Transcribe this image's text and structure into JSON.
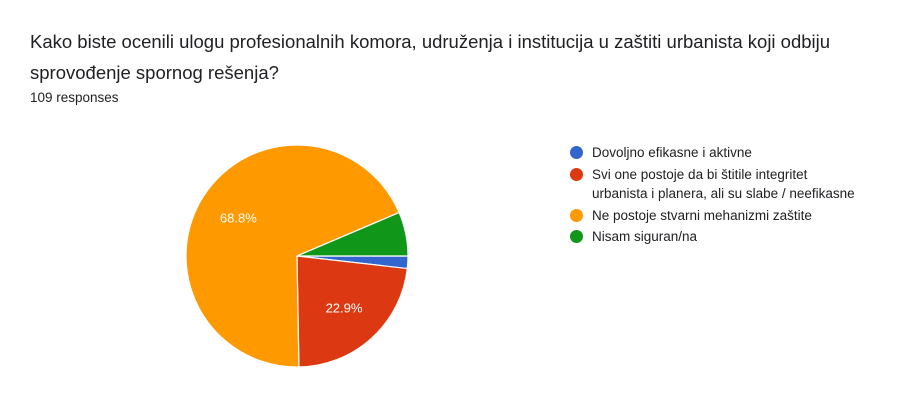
{
  "question": "Kako biste ocenili ulogu profesionalnih komora, udruženja i institucija u zaštiti urbanista koji odbiju sprovođenje spornog rešenja?",
  "responses_label": "109 responses",
  "chart_data": {
    "type": "pie",
    "categories": [
      "Dovoljno efikasne i aktivne",
      "Svi one postoje da bi štitile integritet urbanista i planera, ali su slabe / neefikasne",
      "Ne postoje stvarni mehanizmi zaštite",
      "Nisam siguran/na"
    ],
    "values": [
      1.8,
      22.9,
      68.8,
      6.4
    ],
    "data_labels": [
      "",
      "22.9%",
      "68.8%",
      ""
    ],
    "colors": [
      "#3366cc",
      "#dc3912",
      "#ff9900",
      "#109618"
    ],
    "legend_position": "right"
  }
}
